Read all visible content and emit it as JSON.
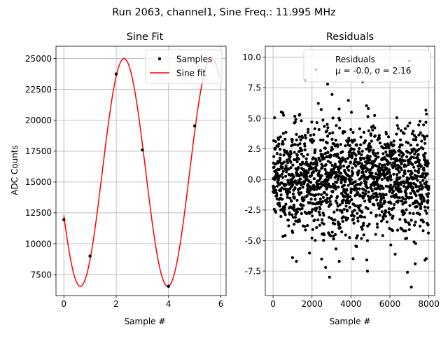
{
  "figure": {
    "suptitle": "Run 2063, channel1, Sine Freq.: 11.995 MHz"
  },
  "chart_data": [
    {
      "type": "line",
      "title": "Sine Fit",
      "xlabel": "Sample #",
      "ylabel": "ADC Counts",
      "xlim": [
        -0.3,
        6.2
      ],
      "ylim": [
        5800,
        26000
      ],
      "xticks": [
        0,
        2,
        4,
        6
      ],
      "yticks": [
        7500,
        10000,
        12500,
        15000,
        17500,
        20000,
        22500,
        25000
      ],
      "grid": true,
      "legend_placement": "top-right",
      "series": [
        {
          "name": "Samples",
          "kind": "scatter",
          "color": "#000000",
          "x": [
            0,
            1,
            2,
            3,
            4,
            5
          ],
          "y": [
            11950,
            9000,
            23750,
            17600,
            6550,
            19550
          ]
        },
        {
          "name": "Sine fit",
          "kind": "line",
          "color": "#ff0000",
          "model": {
            "offset": 15775,
            "amplitude": 9225,
            "period": 3.34,
            "phase_x": 2.3
          },
          "x_range": [
            0,
            5.95
          ]
        }
      ]
    },
    {
      "type": "scatter",
      "title": "Residuals",
      "xlabel": "Sample #",
      "ylabel": "",
      "xlim": [
        -400,
        8300
      ],
      "ylim": [
        -9.5,
        10.9
      ],
      "xticks": [
        0,
        2000,
        4000,
        6000,
        8000
      ],
      "yticks": [
        -7.5,
        -5.0,
        -2.5,
        0.0,
        2.5,
        5.0,
        7.5,
        10.0
      ],
      "grid": true,
      "legend_placement": "top-right",
      "series": [
        {
          "name": "Residuals",
          "color": "#000000",
          "n_points": 8000,
          "mean": -0.0,
          "sigma": 2.16,
          "stats_label": "μ = -0.0, σ = 2.16",
          "outliers": [
            [
              7000,
              9.7
            ],
            [
              2200,
              9.0
            ],
            [
              1650,
              8.1
            ],
            [
              2800,
              7.8
            ],
            [
              4600,
              8.0
            ],
            [
              7100,
              -8.8
            ],
            [
              6900,
              -7.6
            ],
            [
              2900,
              -8.0
            ],
            [
              4850,
              -7.5
            ],
            [
              2700,
              -7.2
            ],
            [
              7800,
              -6.6
            ],
            [
              3400,
              -6.7
            ],
            [
              1000,
              -6.4
            ],
            [
              1200,
              -6.7
            ],
            [
              7300,
              -6.9
            ]
          ]
        }
      ]
    }
  ]
}
